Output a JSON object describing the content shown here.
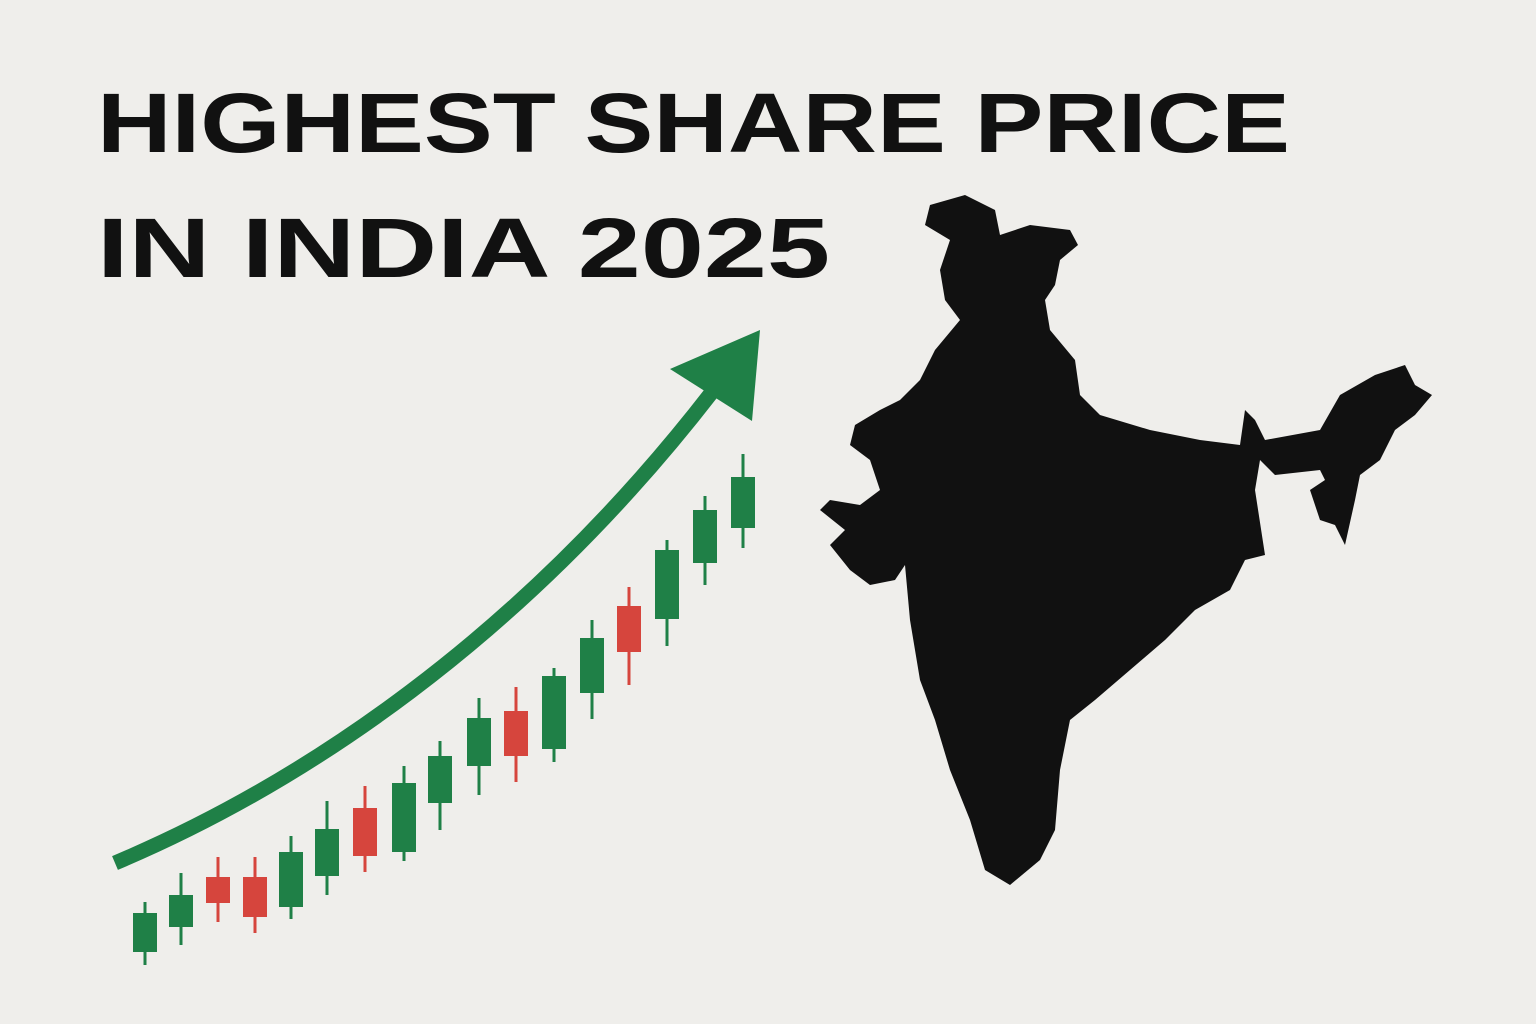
{
  "title": {
    "lines": [
      "HIGHEST SHARE PRICE",
      "IN INDIA 2025"
    ]
  }
}
